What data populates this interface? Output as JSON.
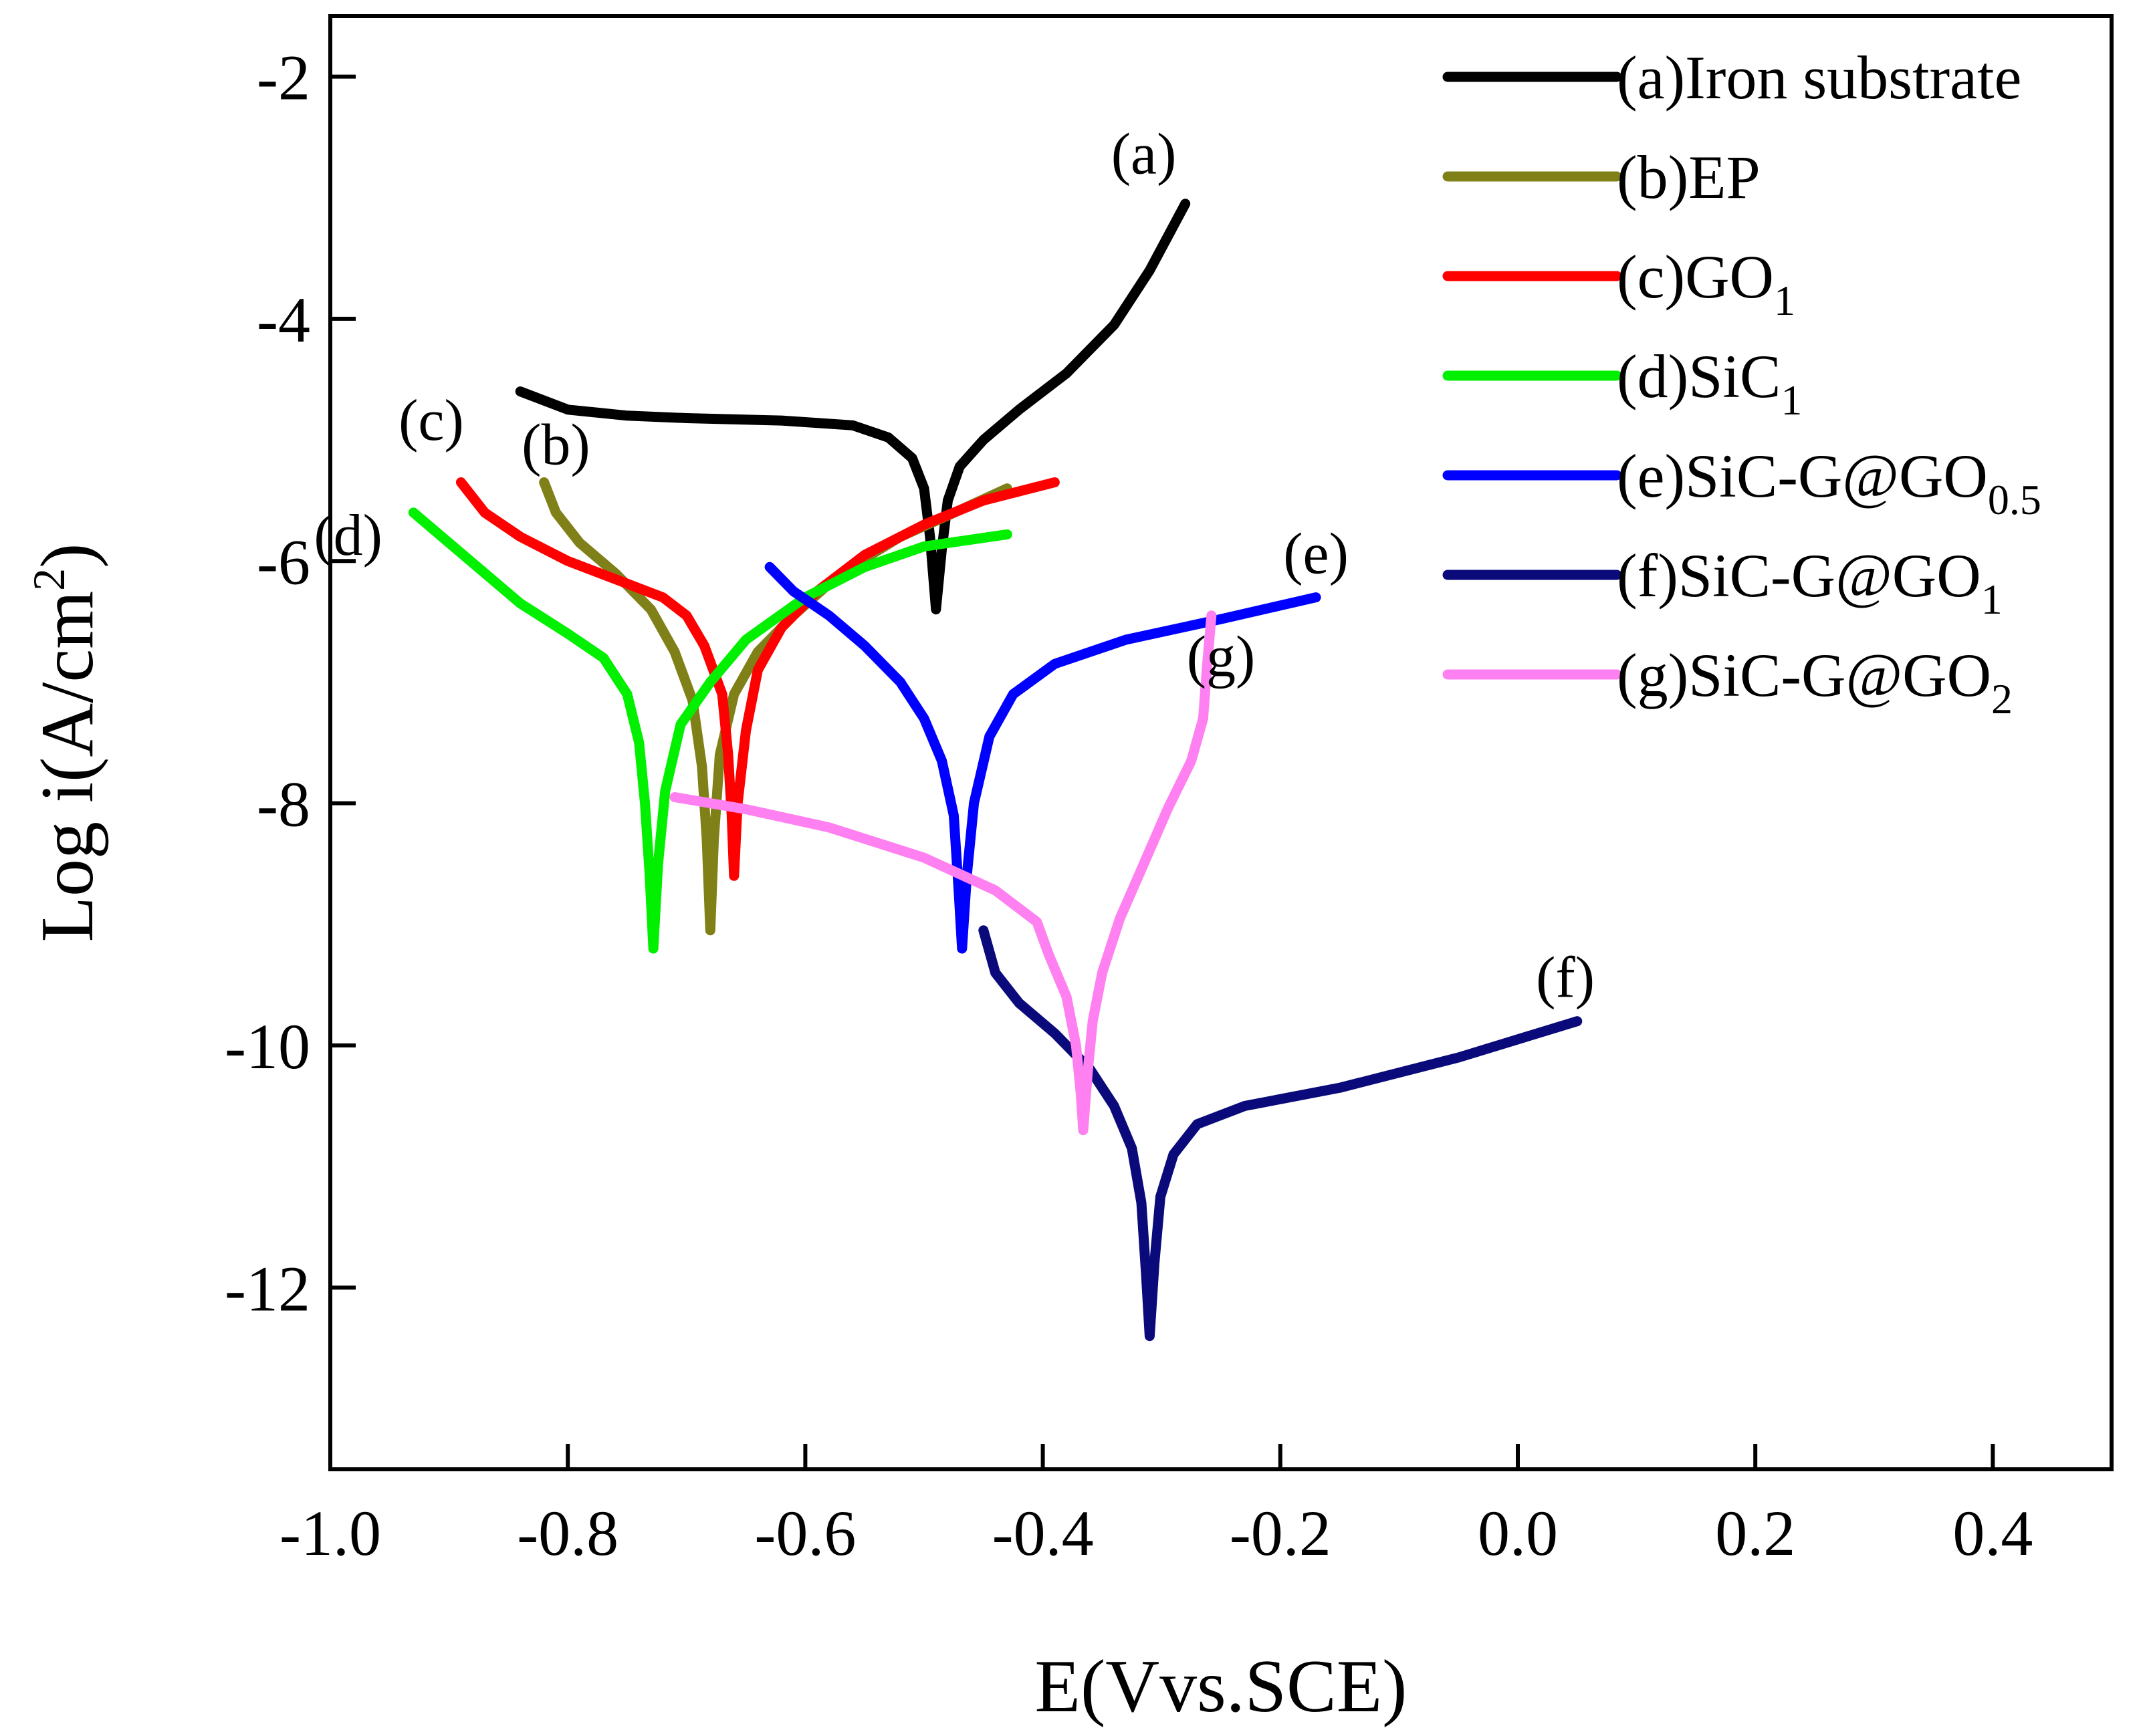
{
  "chart_data": {
    "type": "line",
    "title": "",
    "xlabel": "E(Vvs.SCE)",
    "ylabel": "Log i(A/cm²)",
    "ylabel_parts": {
      "main": "Log i(A/cm",
      "sup": "2",
      "close": ")"
    },
    "xlim": [
      -1.0,
      0.5
    ],
    "ylim": [
      -13.5,
      -1.5
    ],
    "xticks": [
      -1.0,
      -0.8,
      -0.6,
      -0.4,
      -0.2,
      0.0,
      0.2,
      0.4
    ],
    "xtick_labels": [
      "-1.0",
      "-0.8",
      "-0.6",
      "-0.4",
      "-0.2",
      "0.0",
      "0.2",
      "0.4"
    ],
    "yticks": [
      -2,
      -4,
      -6,
      -8,
      -10,
      -12
    ],
    "ytick_labels": [
      "-2",
      "-4",
      "-6",
      "-8",
      "-10",
      "-12"
    ],
    "legend_position": "top-right",
    "series": [
      {
        "key": "a",
        "name": "(a)Iron substrate",
        "label_base": "(a)Iron substrate",
        "label_sub": "",
        "curve_label": "(a)",
        "curve_label_at": [
          -0.315,
          -2.8
        ],
        "color": "#000000",
        "points": [
          [
            -0.84,
            -4.6
          ],
          [
            -0.8,
            -4.75
          ],
          [
            -0.75,
            -4.8
          ],
          [
            -0.7,
            -4.82
          ],
          [
            -0.62,
            -4.84
          ],
          [
            -0.56,
            -4.88
          ],
          [
            -0.53,
            -4.98
          ],
          [
            -0.51,
            -5.15
          ],
          [
            -0.5,
            -5.4
          ],
          [
            -0.495,
            -5.8
          ],
          [
            -0.49,
            -6.4
          ],
          [
            -0.485,
            -5.9
          ],
          [
            -0.48,
            -5.5
          ],
          [
            -0.47,
            -5.22
          ],
          [
            -0.45,
            -5.0
          ],
          [
            -0.42,
            -4.75
          ],
          [
            -0.38,
            -4.45
          ],
          [
            -0.34,
            -4.05
          ],
          [
            -0.31,
            -3.6
          ],
          [
            -0.28,
            -3.05
          ]
        ]
      },
      {
        "key": "b",
        "name": "(b)EP",
        "label_base": "(b)EP",
        "label_sub": "",
        "curve_label": "(b)",
        "curve_label_at": [
          -0.81,
          -5.2
        ],
        "color": "#808018",
        "points": [
          [
            -0.82,
            -5.35
          ],
          [
            -0.81,
            -5.6
          ],
          [
            -0.79,
            -5.85
          ],
          [
            -0.76,
            -6.1
          ],
          [
            -0.73,
            -6.4
          ],
          [
            -0.71,
            -6.75
          ],
          [
            -0.695,
            -7.15
          ],
          [
            -0.687,
            -7.7
          ],
          [
            -0.683,
            -8.3
          ],
          [
            -0.68,
            -9.05
          ],
          [
            -0.677,
            -8.3
          ],
          [
            -0.672,
            -7.6
          ],
          [
            -0.66,
            -7.1
          ],
          [
            -0.64,
            -6.75
          ],
          [
            -0.61,
            -6.45
          ],
          [
            -0.57,
            -6.1
          ],
          [
            -0.52,
            -5.8
          ],
          [
            -0.47,
            -5.58
          ],
          [
            -0.43,
            -5.4
          ]
        ]
      },
      {
        "key": "c",
        "name": "GO₁",
        "label_base": "(c)GO",
        "label_sub": "1",
        "curve_label": "(c)",
        "curve_label_at": [
          -0.915,
          -5.0
        ],
        "color": "#ff0000",
        "points": [
          [
            -0.89,
            -5.35
          ],
          [
            -0.87,
            -5.6
          ],
          [
            -0.84,
            -5.8
          ],
          [
            -0.8,
            -6.0
          ],
          [
            -0.76,
            -6.15
          ],
          [
            -0.72,
            -6.3
          ],
          [
            -0.7,
            -6.45
          ],
          [
            -0.685,
            -6.7
          ],
          [
            -0.67,
            -7.1
          ],
          [
            -0.665,
            -7.6
          ],
          [
            -0.662,
            -8.1
          ],
          [
            -0.66,
            -8.6
          ],
          [
            -0.657,
            -8.0
          ],
          [
            -0.65,
            -7.4
          ],
          [
            -0.64,
            -6.9
          ],
          [
            -0.62,
            -6.55
          ],
          [
            -0.59,
            -6.25
          ],
          [
            -0.55,
            -5.95
          ],
          [
            -0.5,
            -5.7
          ],
          [
            -0.45,
            -5.5
          ],
          [
            -0.39,
            -5.35
          ]
        ]
      },
      {
        "key": "d",
        "name": "SiC₁",
        "label_base": "(d)SiC",
        "label_sub": "1",
        "curve_label": "(d)",
        "curve_label_at": [
          -0.985,
          -5.95
        ],
        "color": "#00f000",
        "points": [
          [
            -0.93,
            -5.6
          ],
          [
            -0.9,
            -5.85
          ],
          [
            -0.87,
            -6.1
          ],
          [
            -0.84,
            -6.35
          ],
          [
            -0.8,
            -6.6
          ],
          [
            -0.77,
            -6.8
          ],
          [
            -0.75,
            -7.1
          ],
          [
            -0.74,
            -7.5
          ],
          [
            -0.735,
            -8.0
          ],
          [
            -0.731,
            -8.6
          ],
          [
            -0.728,
            -9.2
          ],
          [
            -0.724,
            -8.5
          ],
          [
            -0.718,
            -7.9
          ],
          [
            -0.705,
            -7.35
          ],
          [
            -0.68,
            -7.0
          ],
          [
            -0.65,
            -6.65
          ],
          [
            -0.6,
            -6.3
          ],
          [
            -0.55,
            -6.05
          ],
          [
            -0.5,
            -5.88
          ],
          [
            -0.43,
            -5.78
          ]
        ]
      },
      {
        "key": "e",
        "name": "SiC-G@GO₀.₅",
        "label_base": "(e)SiC-G@GO",
        "label_sub": "0.5",
        "curve_label": "(e)",
        "curve_label_at": [
          -0.17,
          -6.1
        ],
        "color": "#0000ff",
        "points": [
          [
            -0.63,
            -6.05
          ],
          [
            -0.61,
            -6.25
          ],
          [
            -0.58,
            -6.45
          ],
          [
            -0.55,
            -6.7
          ],
          [
            -0.52,
            -7.0
          ],
          [
            -0.5,
            -7.3
          ],
          [
            -0.485,
            -7.65
          ],
          [
            -0.475,
            -8.1
          ],
          [
            -0.471,
            -8.7
          ],
          [
            -0.468,
            -9.2
          ],
          [
            -0.464,
            -8.6
          ],
          [
            -0.458,
            -8.0
          ],
          [
            -0.445,
            -7.45
          ],
          [
            -0.425,
            -7.1
          ],
          [
            -0.39,
            -6.85
          ],
          [
            -0.33,
            -6.65
          ],
          [
            -0.25,
            -6.48
          ],
          [
            -0.17,
            -6.3
          ]
        ]
      },
      {
        "key": "f",
        "name": "SiC-G@GO₁",
        "label_base": "(f)SiC-G@GO",
        "label_sub": "1",
        "curve_label": "(f)",
        "curve_label_at": [
          0.04,
          -9.6
        ],
        "color": "#0a0a7a",
        "points": [
          [
            -0.45,
            -9.05
          ],
          [
            -0.44,
            -9.4
          ],
          [
            -0.42,
            -9.65
          ],
          [
            -0.39,
            -9.9
          ],
          [
            -0.36,
            -10.2
          ],
          [
            -0.34,
            -10.5
          ],
          [
            -0.325,
            -10.85
          ],
          [
            -0.317,
            -11.3
          ],
          [
            -0.313,
            -11.9
          ],
          [
            -0.31,
            -12.4
          ],
          [
            -0.306,
            -11.8
          ],
          [
            -0.301,
            -11.25
          ],
          [
            -0.29,
            -10.9
          ],
          [
            -0.27,
            -10.65
          ],
          [
            -0.23,
            -10.5
          ],
          [
            -0.15,
            -10.35
          ],
          [
            -0.05,
            -10.1
          ],
          [
            0.05,
            -9.8
          ]
        ]
      },
      {
        "key": "g",
        "name": "SiC-G@GO₂",
        "label_base": "(g)SiC-G@GO",
        "label_sub": "2",
        "curve_label": "(g)",
        "curve_label_at": [
          -0.25,
          -6.95
        ],
        "color": "#ff80f0",
        "points": [
          [
            -0.71,
            -7.95
          ],
          [
            -0.65,
            -8.05
          ],
          [
            -0.58,
            -8.2
          ],
          [
            -0.5,
            -8.45
          ],
          [
            -0.44,
            -8.72
          ],
          [
            -0.405,
            -8.98
          ],
          [
            -0.395,
            -9.25
          ],
          [
            -0.38,
            -9.6
          ],
          [
            -0.372,
            -10.0
          ],
          [
            -0.368,
            -10.4
          ],
          [
            -0.366,
            -10.7
          ],
          [
            -0.362,
            -10.2
          ],
          [
            -0.358,
            -9.8
          ],
          [
            -0.35,
            -9.4
          ],
          [
            -0.335,
            -8.95
          ],
          [
            -0.315,
            -8.5
          ],
          [
            -0.295,
            -8.05
          ],
          [
            -0.275,
            -7.65
          ],
          [
            -0.265,
            -7.3
          ],
          [
            -0.262,
            -6.9
          ],
          [
            -0.258,
            -6.45
          ]
        ]
      }
    ]
  }
}
